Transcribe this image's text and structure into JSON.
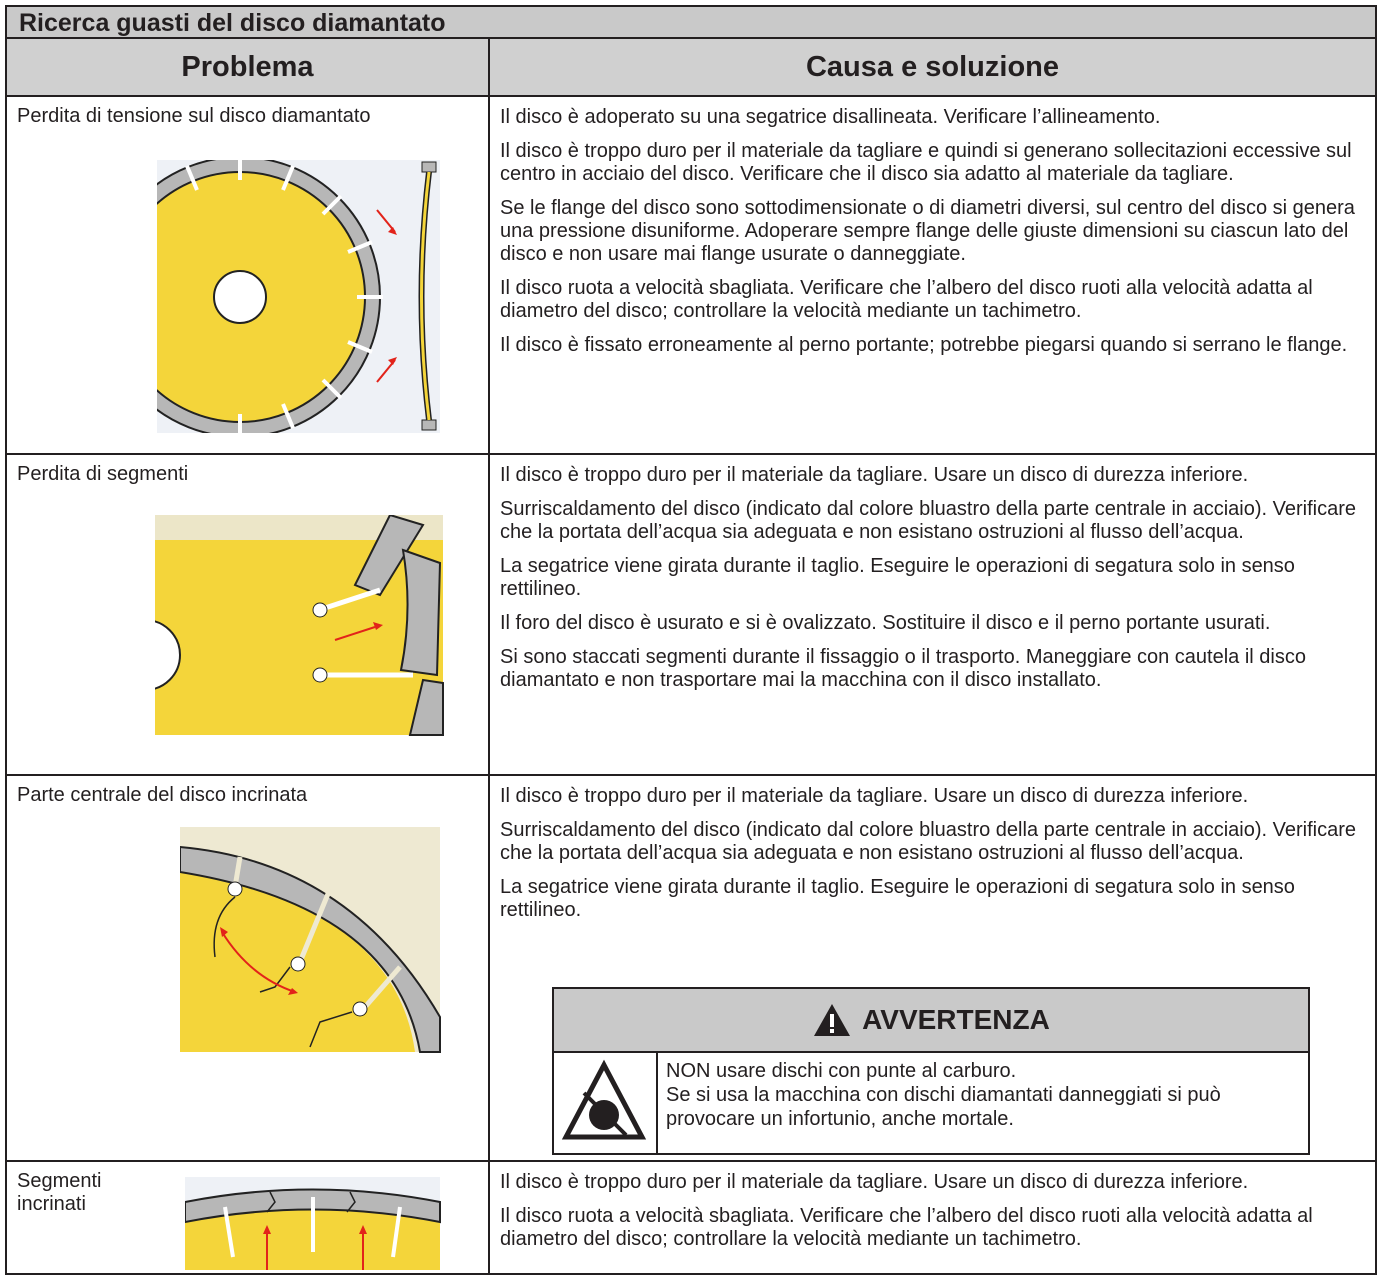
{
  "title": "Ricerca guasti del disco diamantato",
  "table": {
    "headers": [
      "Problema",
      "Causa e soluzione"
    ],
    "rows": [
      {
        "problem": "Perdita di tensione sul disco diamantato",
        "causes": [
          "Il disco è adoperato su una segatrice disallineata. Verificare l’allineamento.",
          "Il disco è troppo duro per il materiale da tagliare e quindi si generano sollecitazioni eccessive sul centro in acciaio del disco. Verificare che il disco sia adatto al materiale da tagliare.",
          "Se le flange del disco sono sottodimensionate o di diametri diversi, sul centro del disco si genera una pressione disuniforme. Adoperare sempre flange delle giuste dimensioni su ciascun lato del disco e non usare mai flange usurate o danneggiate.",
          "Il disco ruota a velocità sbagliata. Verificare che l’albero del disco ruoti alla velocità adatta al diametro del disco; controllare la velocità mediante un tachimetro.",
          "Il disco è fissato erroneamente al perno portante; potrebbe piegarsi quando si serrano le flange."
        ]
      },
      {
        "problem": "Perdita di segmenti",
        "causes": [
          "Il disco è troppo duro per il materiale da tagliare. Usare un disco di durezza inferiore.",
          "Surriscaldamento del disco (indicato dal colore bluastro della parte centrale in acciaio). Verificare che la portata dell’acqua sia adeguata e non esistano ostruzioni al flusso dell’acqua.",
          "La segatrice viene girata durante il taglio. Eseguire le operazioni di segatura solo in senso rettilineo.",
          "Il foro del disco è usurato e si è ovalizzato. Sostituire il disco e il perno portante usurati.",
          "Si sono staccati segmenti durante il fissaggio o il trasporto. Maneggiare con cautela il disco diamantato e non trasportare mai la macchina con il disco installato."
        ]
      },
      {
        "problem": "Parte centrale del disco incrinata",
        "causes": [
          "Il disco è troppo duro per il materiale da tagliare. Usare un disco di durezza inferiore.",
          "Surriscaldamento del disco (indicato dal colore bluastro della parte centrale in acciaio). Verificare che la portata dell’acqua sia adeguata e non esistano ostruzioni al flusso dell’acqua.",
          "La segatrice viene girata durante il taglio. Eseguire le operazioni di segatura solo in senso rettilineo."
        ],
        "warning": {
          "title": "AVVERTENZA",
          "lines": [
            "NON usare dischi con punte al carburo.",
            "Se si usa la macchina con dischi diamantati danneggiati si può provocare un infortunio, anche mortale."
          ]
        }
      },
      {
        "problem": "Segmenti incrinati",
        "causes": [
          "Il disco è troppo duro per il materiale da tagliare. Usare un disco di durezza inferiore.",
          "Il disco ruota a velocità sbagliata. Verificare che l’albero del disco ruoti alla velocità adatta al diametro del disco; controllare la velocità mediante un tachimetro."
        ]
      }
    ]
  }
}
